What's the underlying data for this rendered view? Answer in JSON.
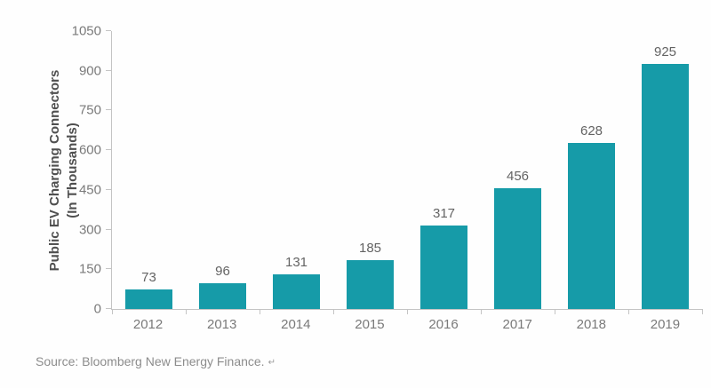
{
  "chart_data": {
    "type": "bar",
    "title": "",
    "categories": [
      "2012",
      "2013",
      "2014",
      "2015",
      "2016",
      "2017",
      "2018",
      "2019"
    ],
    "values": [
      73,
      96,
      131,
      185,
      317,
      456,
      628,
      925
    ],
    "ylabel_line1": "Public EV Charging Connectors",
    "ylabel_line2": "(In Thousands)",
    "xlabel": "",
    "yticks": [
      0,
      150,
      300,
      450,
      600,
      750,
      900,
      1050
    ],
    "ylim": [
      0,
      1050
    ],
    "bar_color": "#169ba8",
    "grid": false,
    "legend": "none",
    "value_labels_shown": true
  },
  "source": {
    "text": "Source: Bloomberg New Energy Finance.",
    "mark": "↵"
  }
}
